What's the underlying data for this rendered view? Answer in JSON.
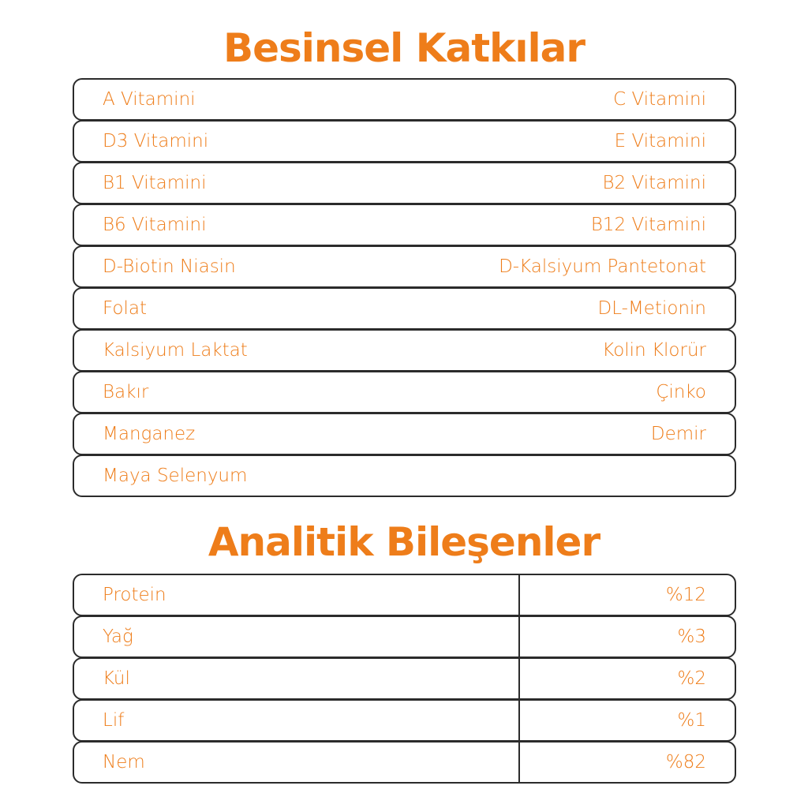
{
  "colors": {
    "accent": "#EE7D1A",
    "border": "#2b2b2b"
  },
  "additives": {
    "title": "Besinsel Katkılar",
    "rows": [
      {
        "left": "A Vitamini",
        "right": "C Vitamini"
      },
      {
        "left": "D3 Vitamini",
        "right": "E Vitamini"
      },
      {
        "left": "B1 Vitamini",
        "right": "B2 Vitamini"
      },
      {
        "left": "B6 Vitamini",
        "right": "B12 Vitamini"
      },
      {
        "left": "D-Biotin Niasin",
        "right": "D-Kalsiyum Pantetonat"
      },
      {
        "left": "Folat",
        "right": "DL-Metionin"
      },
      {
        "left": "Kalsiyum Laktat",
        "right": "Kolin Klorür"
      },
      {
        "left": "Bakır",
        "right": "Çinko"
      },
      {
        "left": "Manganez",
        "right": "Demir"
      },
      {
        "left": "Maya Selenyum",
        "right": ""
      }
    ]
  },
  "analytics": {
    "title": "Analitik Bileşenler",
    "rows": [
      {
        "name": "Protein",
        "value": "%12"
      },
      {
        "name": "Yağ",
        "value": "%3"
      },
      {
        "name": "Kül",
        "value": "%2"
      },
      {
        "name": "Lif",
        "value": "%1"
      },
      {
        "name": "Nem",
        "value": "%82"
      }
    ]
  }
}
